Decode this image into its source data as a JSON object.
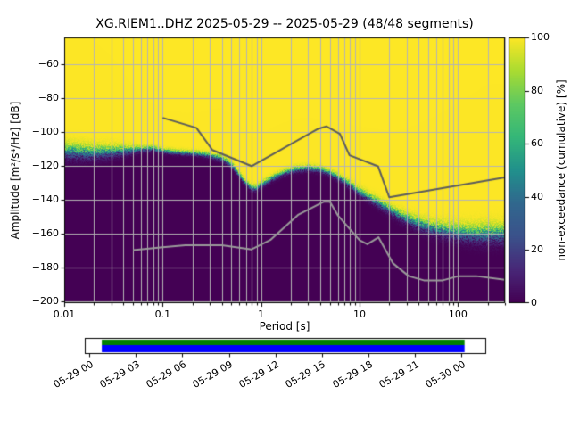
{
  "chart_data": {
    "type": "heatmap",
    "title": "XG.RIEM1..DHZ   2025-05-29 -- 2025-05-29  (48/48 segments)",
    "station": "XG.RIEM1..DHZ",
    "date_range": "2025-05-29 -- 2025-05-29",
    "segments": "48/48 segments",
    "xlabel": "Period [s]",
    "ylabel": "Amplitude [m²/s⁴/Hz] [dB]",
    "colorbar_label": "non-exceedance (cumulative) [%]",
    "x_scale": "log",
    "xlim": [
      0.01,
      300
    ],
    "ylim": [
      -201,
      -44
    ],
    "grid": true,
    "x_ticks": [
      {
        "value": 0.01,
        "label": "0.01"
      },
      {
        "value": 0.1,
        "label": "0.1"
      },
      {
        "value": 1,
        "label": "1"
      },
      {
        "value": 10,
        "label": "10"
      },
      {
        "value": 100,
        "label": "100"
      }
    ],
    "y_ticks": [
      {
        "value": -60,
        "label": "−60"
      },
      {
        "value": -80,
        "label": "−80"
      },
      {
        "value": -100,
        "label": "−100"
      },
      {
        "value": -120,
        "label": "−120"
      },
      {
        "value": -140,
        "label": "−140"
      },
      {
        "value": -160,
        "label": "−160"
      },
      {
        "value": -180,
        "label": "−180"
      },
      {
        "value": -200,
        "label": "−200"
      }
    ],
    "colorbar_ticks": [
      {
        "value": 0,
        "label": "0"
      },
      {
        "value": 20,
        "label": "20"
      },
      {
        "value": 40,
        "label": "40"
      },
      {
        "value": 60,
        "label": "60"
      },
      {
        "value": 80,
        "label": "80"
      },
      {
        "value": 100,
        "label": "100"
      }
    ],
    "distribution": {
      "periods": [
        0.01,
        0.02,
        0.035,
        0.06,
        0.08,
        0.1,
        0.15,
        0.22,
        0.3,
        0.4,
        0.5,
        0.6,
        0.7,
        0.8,
        0.9,
        1.0,
        1.3,
        1.7,
        2.2,
        3.0,
        4.0,
        5.0,
        6.5,
        8.0,
        10,
        13,
        17,
        22,
        30,
        40,
        55,
        75,
        100,
        140,
        200,
        300
      ],
      "median_db": [
        -111,
        -112,
        -111,
        -110,
        -109.5,
        -111,
        -112,
        -112.5,
        -113.5,
        -115.5,
        -119,
        -125,
        -130,
        -133,
        -133,
        -131,
        -127,
        -124,
        -122,
        -121,
        -122,
        -124,
        -127.5,
        -131,
        -135,
        -139,
        -143,
        -147,
        -151,
        -154,
        -156.5,
        -158,
        -159,
        -160,
        -160,
        -160
      ],
      "spread_db": [
        5,
        4.5,
        3.5,
        2,
        1.8,
        1.6,
        1.6,
        1.6,
        1.8,
        2,
        2,
        2,
        2,
        2,
        2,
        2,
        2,
        2,
        2,
        2,
        2,
        2,
        2.2,
        2.4,
        2.6,
        2.8,
        3,
        3.2,
        3.6,
        4,
        4.4,
        4.8,
        5.2,
        5.6,
        6,
        6
      ]
    },
    "noise_models": {
      "high": {
        "name": "NHNM",
        "periods": [
          0.1,
          0.22,
          0.32,
          0.8,
          3.8,
          4.6,
          6.3,
          7.9,
          15.4,
          20,
          300
        ],
        "db": [
          -91.5,
          -97.4,
          -110.5,
          -120.0,
          -98.0,
          -96.5,
          -100.9,
          -113.6,
          -120.1,
          -138.4,
          -126.7
        ]
      },
      "low": {
        "name": "NLNM",
        "periods": [
          0.05,
          0.1,
          0.17,
          0.4,
          0.8,
          1.24,
          2.4,
          4.3,
          5.0,
          6.0,
          10,
          12,
          15.6,
          21.9,
          31.6,
          45,
          70,
          101,
          154,
          300
        ],
        "db": [
          -169.7,
          -168.0,
          -166.7,
          -166.7,
          -169.2,
          -163.7,
          -148.6,
          -141.1,
          -141.1,
          -149.0,
          -163.8,
          -166.2,
          -162.1,
          -177.5,
          -185.0,
          -187.5,
          -187.5,
          -185.0,
          -185.0,
          -187.2
        ]
      }
    },
    "coverage": {
      "axis_start_hour": -0.3,
      "axis_end_hour": 25.6,
      "data_start_hour": 0.8,
      "data_end_hour": 24.2,
      "ticks": [
        {
          "hour": 0,
          "label": "05-29 00"
        },
        {
          "hour": 3,
          "label": "05-29 03"
        },
        {
          "hour": 6,
          "label": "05-29 06"
        },
        {
          "hour": 9,
          "label": "05-29 09"
        },
        {
          "hour": 12,
          "label": "05-29 12"
        },
        {
          "hour": 15,
          "label": "05-29 15"
        },
        {
          "hour": 18,
          "label": "05-29 18"
        },
        {
          "hour": 21,
          "label": "05-29 21"
        },
        {
          "hour": 24,
          "label": "05-30 00"
        }
      ]
    },
    "colors": {
      "background": "#ffffff",
      "grid": "#b4b4b4",
      "frame": "#000000",
      "text": "#000000",
      "nhnm_line": "#5c5c5c",
      "nlnm_line": "#9a9a9a",
      "coverage_green": "#008000",
      "coverage_blue": "#0000ff",
      "viridis_stops": [
        [
          0,
          "#440154"
        ],
        [
          0.125,
          "#482878"
        ],
        [
          0.25,
          "#3b528b"
        ],
        [
          0.375,
          "#31688e"
        ],
        [
          0.5,
          "#21918c"
        ],
        [
          0.625,
          "#35b779"
        ],
        [
          0.75,
          "#5ec962"
        ],
        [
          0.875,
          "#aadc32"
        ],
        [
          1,
          "#fde725"
        ]
      ]
    }
  }
}
